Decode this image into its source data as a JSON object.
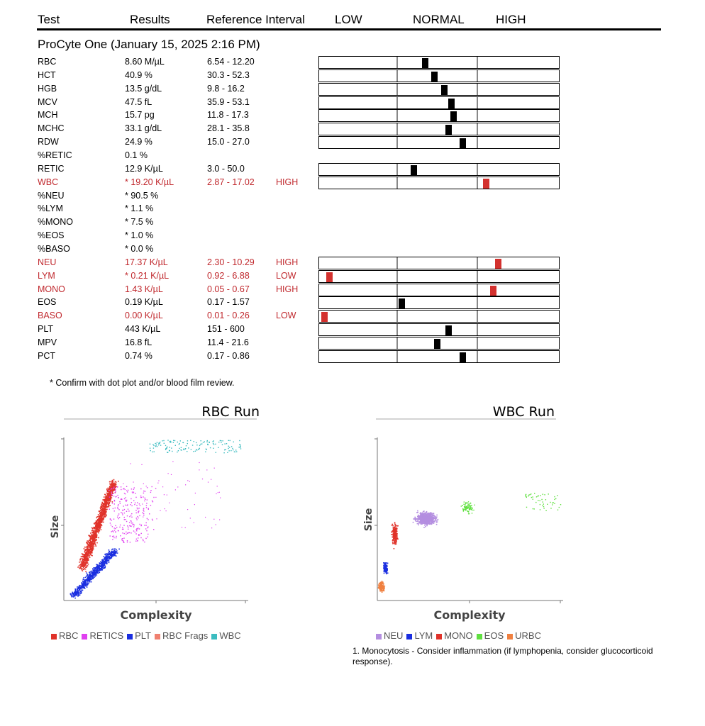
{
  "header": {
    "test": "Test",
    "results": "Results",
    "reference": "Reference Interval",
    "low": "LOW",
    "normal": "NORMAL",
    "high": "HIGH"
  },
  "instrument": "ProCyte One (January 15, 2025 2:16 PM)",
  "rows": [
    {
      "test": "RBC",
      "result": "8.60 M/µL",
      "ref": "6.54 - 12.20",
      "flag": "",
      "abnormal": false,
      "bar": true,
      "pos": 0.44
    },
    {
      "test": "HCT",
      "result": "40.9 %",
      "ref": "30.3 - 52.3",
      "flag": "",
      "abnormal": false,
      "bar": true,
      "pos": 0.48
    },
    {
      "test": "HGB",
      "result": "13.5 g/dL",
      "ref": "9.8 - 16.2",
      "flag": "",
      "abnormal": false,
      "bar": true,
      "pos": 0.52
    },
    {
      "test": "MCV",
      "result": "47.5 fL",
      "ref": "35.9 - 53.1",
      "flag": "",
      "abnormal": false,
      "bar": true,
      "pos": 0.55
    },
    {
      "test": "MCH",
      "result": "15.7 pg",
      "ref": "11.8 - 17.3",
      "flag": "",
      "abnormal": false,
      "bar": true,
      "pos": 0.56
    },
    {
      "test": "MCHC",
      "result": "33.1 g/dL",
      "ref": "28.1 - 35.8",
      "flag": "",
      "abnormal": false,
      "bar": true,
      "pos": 0.54
    },
    {
      "test": "RDW",
      "result": "24.9 %",
      "ref": "15.0 - 27.0",
      "flag": "",
      "abnormal": false,
      "bar": true,
      "pos": 0.6
    },
    {
      "test": "%RETIC",
      "result": "0.1 %",
      "ref": "",
      "flag": "",
      "abnormal": false,
      "bar": false
    },
    {
      "test": "RETIC",
      "result": "12.9 K/µL",
      "ref": "3.0 - 50.0",
      "flag": "",
      "abnormal": false,
      "bar": true,
      "pos": 0.39
    },
    {
      "test": "WBC",
      "result": "* 19.20 K/µL",
      "ref": "2.87 - 17.02",
      "flag": "HIGH",
      "abnormal": true,
      "bar": true,
      "pos": 0.7
    },
    {
      "test": "%NEU",
      "result": "* 90.5 %",
      "ref": "",
      "flag": "",
      "abnormal": false,
      "bar": false
    },
    {
      "test": "%LYM",
      "result": "* 1.1 %",
      "ref": "",
      "flag": "",
      "abnormal": false,
      "bar": false
    },
    {
      "test": "%MONO",
      "result": "* 7.5 %",
      "ref": "",
      "flag": "",
      "abnormal": false,
      "bar": false
    },
    {
      "test": "%EOS",
      "result": "* 1.0 %",
      "ref": "",
      "flag": "",
      "abnormal": false,
      "bar": false
    },
    {
      "test": "%BASO",
      "result": "* 0.0 %",
      "ref": "",
      "flag": "",
      "abnormal": false,
      "bar": false
    },
    {
      "test": "NEU",
      "result": "17.37 K/µL",
      "ref": "2.30 - 10.29",
      "flag": "HIGH",
      "abnormal": true,
      "bar": true,
      "pos": 0.75
    },
    {
      "test": "LYM",
      "result": "* 0.21 K/µL",
      "ref": "0.92 - 6.88",
      "flag": "LOW",
      "abnormal": true,
      "bar": true,
      "pos": 0.03
    },
    {
      "test": "MONO",
      "result": "1.43 K/µL",
      "ref": "0.05 - 0.67",
      "flag": "HIGH",
      "abnormal": true,
      "bar": true,
      "pos": 0.73
    },
    {
      "test": "EOS",
      "result": "0.19 K/µL",
      "ref": "0.17 - 1.57",
      "flag": "",
      "abnormal": false,
      "bar": true,
      "pos": 0.34
    },
    {
      "test": "BASO",
      "result": "0.00 K/µL",
      "ref": "0.01 - 0.26",
      "flag": "LOW",
      "abnormal": true,
      "bar": true,
      "pos": 0.01
    },
    {
      "test": "PLT",
      "result": "443 K/µL",
      "ref": "151 - 600",
      "flag": "",
      "abnormal": false,
      "bar": true,
      "pos": 0.54
    },
    {
      "test": "MPV",
      "result": "16.8 fL",
      "ref": "11.4 - 21.6",
      "flag": "",
      "abnormal": false,
      "bar": true,
      "pos": 0.49
    },
    {
      "test": "PCT",
      "result": "0.74 %",
      "ref": "0.17 - 0.86",
      "flag": "",
      "abnormal": false,
      "bar": true,
      "pos": 0.6
    }
  ],
  "footnote": "* Confirm with dot plot and/or blood film review.",
  "plots": {
    "rbc": {
      "title": "RBC Run",
      "xlabel": "Complexity",
      "ylabel": "Size",
      "legend": [
        {
          "label": "RBC",
          "color": "#e0322a"
        },
        {
          "label": "RETICS",
          "color": "#e040f0"
        },
        {
          "label": "PLT",
          "color": "#1a2ee0"
        },
        {
          "label": "RBC Frags",
          "color": "#f08070"
        },
        {
          "label": "WBC",
          "color": "#3cbcc0"
        }
      ]
    },
    "wbc": {
      "title": "WBC Run",
      "xlabel": "Complexity",
      "ylabel": "Size",
      "legend": [
        {
          "label": "NEU",
          "color": "#b48ee0"
        },
        {
          "label": "LYM",
          "color": "#1a2ee0"
        },
        {
          "label": "MONO",
          "color": "#e0322a"
        },
        {
          "label": "EOS",
          "color": "#60e040"
        },
        {
          "label": "URBC",
          "color": "#f08040"
        }
      ]
    }
  },
  "interpretation": "1. Monocytosis - Consider inflammation (if lymphopenia, consider glucocorticoid response)."
}
